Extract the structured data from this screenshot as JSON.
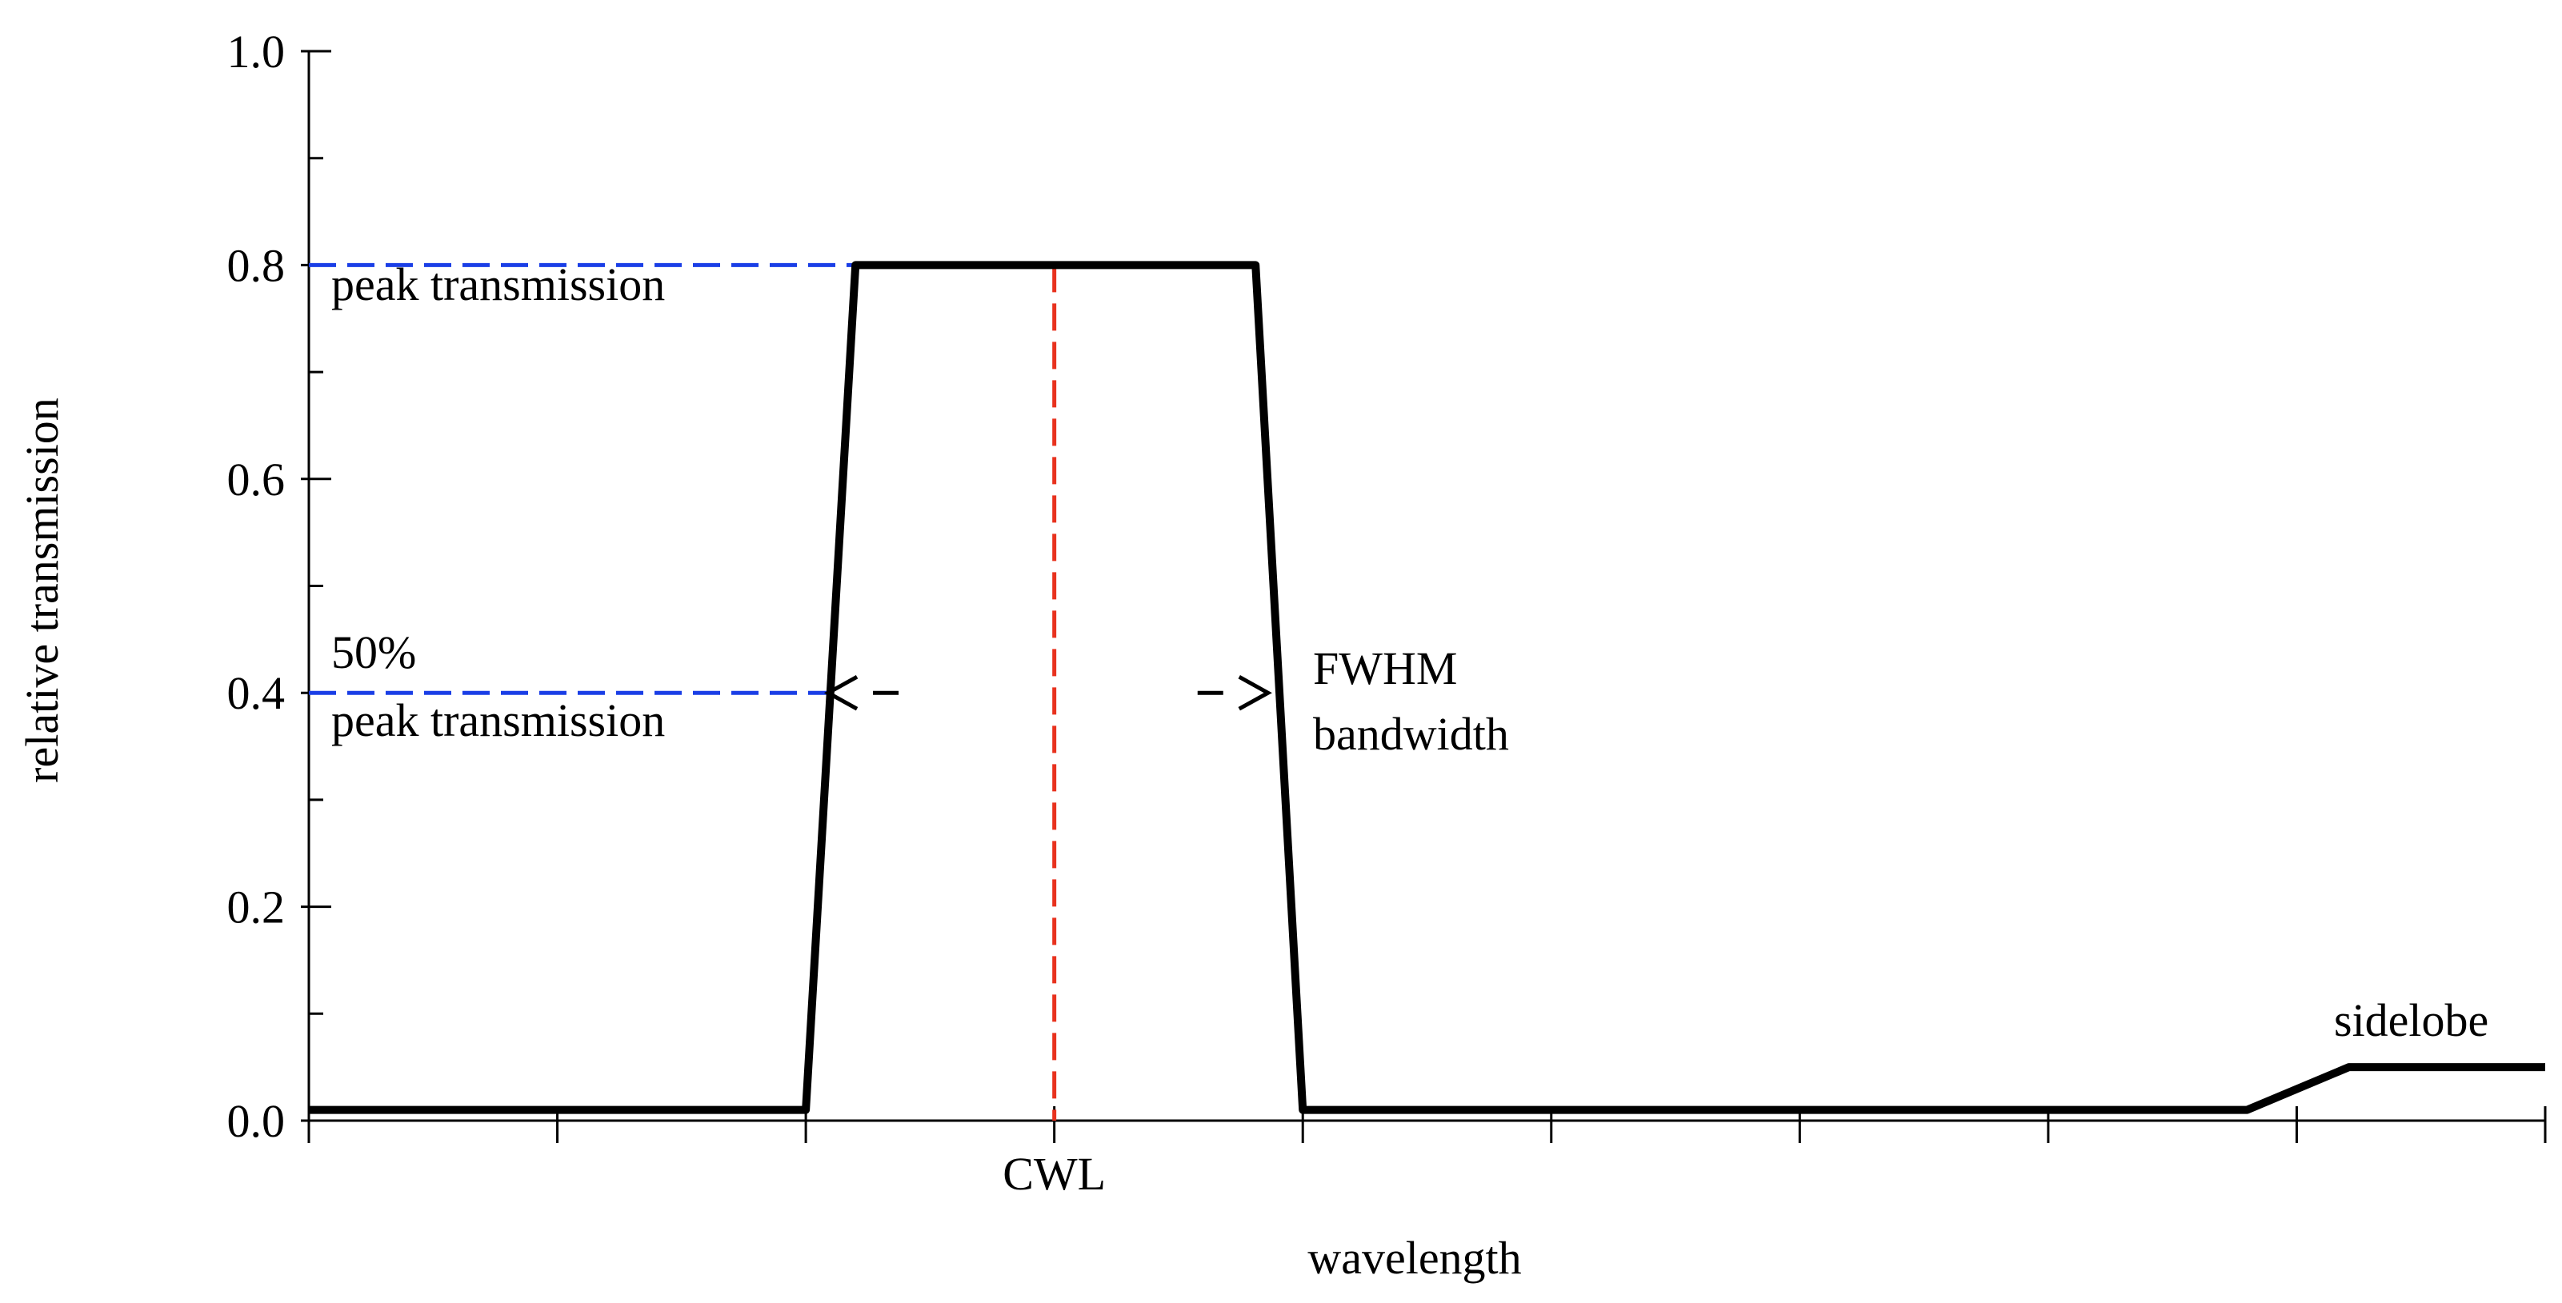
{
  "chart_data": {
    "type": "line",
    "xlabel": "wavelength",
    "ylabel": "relative transmission",
    "x": [
      0,
      2.0,
      2.2,
      3.81,
      4.0,
      7.8,
      8.21,
      9.0
    ],
    "series": [
      {
        "color": "#000000",
        "values": [
          0.01,
          0.01,
          0.8,
          0.8,
          0.01,
          0.01,
          0.05,
          0.05
        ]
      }
    ],
    "xlim": [
      0,
      9
    ],
    "xticks": [
      0,
      1,
      2,
      3,
      4,
      5,
      6,
      7,
      8,
      9
    ],
    "ylim": [
      0,
      1.0
    ],
    "yticks": [
      {
        "value": 0,
        "label": "0.0"
      },
      0.2,
      0.4,
      0.6,
      0.8,
      {
        "value": 1.0,
        "label": "1.0"
      }
    ],
    "yminor": [
      0.1,
      0.3,
      0.5,
      0.7,
      0.9
    ],
    "markers": {
      "cwl": {
        "label": "CWL",
        "x": 3.0,
        "y": 0.8,
        "color": "#e8321e"
      },
      "peak": {
        "label": "peak transmission",
        "y": 0.8,
        "x": 2.2,
        "color": "#1a3ee6"
      },
      "half": {
        "label": [
          "50%",
          "peak transmission"
        ],
        "y": 0.4,
        "x": 2.09,
        "color": "#1a3ee6"
      },
      "fwhm": {
        "label": [
          "FWHM",
          "bandwidth"
        ],
        "x": [
          2.09,
          3.86
        ],
        "y": 0.4
      },
      "sidelobe": {
        "label": "sidelobe"
      }
    }
  }
}
